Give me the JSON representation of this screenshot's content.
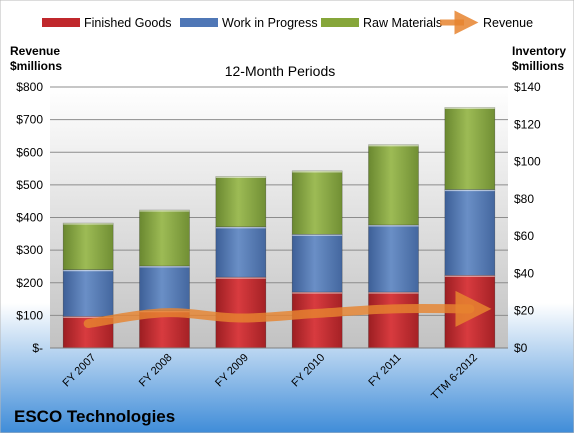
{
  "chart_data": {
    "type": "bar",
    "stacked": true,
    "title": "12-Month Periods",
    "company": "ESCO Technologies",
    "categories": [
      "FY 2007",
      "FY 2008",
      "FY 2009",
      "FY 2010",
      "FY 2011",
      "TTM 6-2012"
    ],
    "y_left": {
      "label_line1": "Revenue",
      "label_line2": "$millions",
      "range": [
        0,
        800
      ],
      "ticks": [
        "$-",
        "$100",
        "$200",
        "$300",
        "$400",
        "$500",
        "$600",
        "$700",
        "$800"
      ]
    },
    "y_right": {
      "label_line1": "Inventory",
      "label_line2": "$millions",
      "range": [
        0,
        140
      ],
      "ticks": [
        "$0",
        "$20",
        "$40",
        "$60",
        "$80",
        "$100",
        "$120",
        "$140"
      ]
    },
    "series": [
      {
        "name": "Finished Goods",
        "axis": "right",
        "color": "#c0282c",
        "values": [
          17,
          20,
          38,
          30,
          30,
          39
        ]
      },
      {
        "name": "Work in Progress",
        "axis": "right",
        "color": "#4f77b6",
        "values": [
          25,
          24,
          27,
          31,
          36,
          46
        ]
      },
      {
        "name": "Raw Materials",
        "axis": "right",
        "color": "#86a63a",
        "values": [
          25,
          30,
          27,
          34,
          43,
          44
        ]
      },
      {
        "name": "Revenue",
        "axis": "left",
        "type": "line",
        "color": "#e6842f",
        "values": [
          75,
          108,
          92,
          106,
          120,
          120
        ]
      }
    ],
    "legend_position": "top",
    "grid": true
  }
}
